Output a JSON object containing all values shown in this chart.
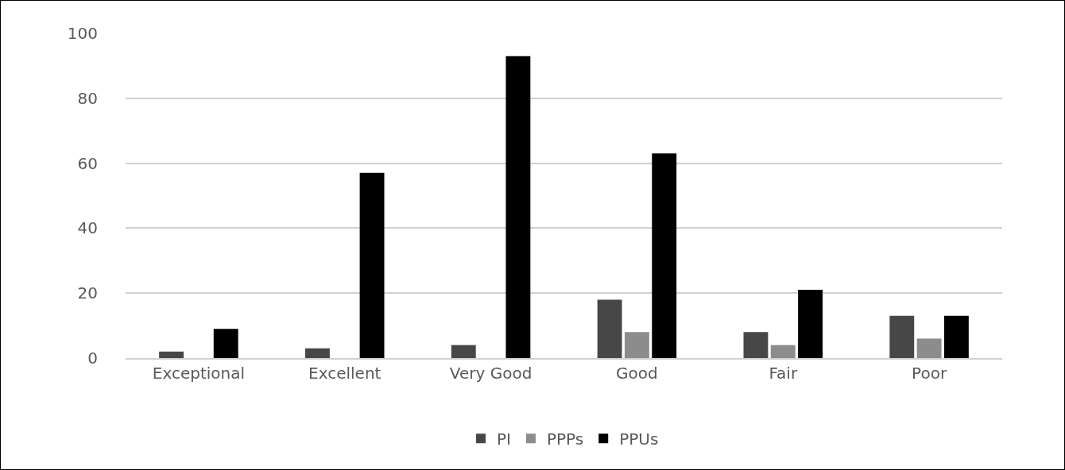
{
  "chart_data": {
    "type": "bar",
    "categories": [
      "Exceptional",
      "Excellent",
      "Very Good",
      "Good",
      "Fair",
      "Poor"
    ],
    "series": [
      {
        "name": "PI",
        "color": "#474747",
        "values": [
          2,
          3,
          4,
          18,
          8,
          13
        ]
      },
      {
        "name": "PPPs",
        "color": "#8c8c8c",
        "values": [
          0,
          0,
          0,
          8,
          4,
          6
        ]
      },
      {
        "name": "PPUs",
        "color": "#000000",
        "values": [
          9,
          57,
          93,
          63,
          21,
          13
        ]
      }
    ],
    "ylim": [
      0,
      100
    ],
    "yticks": [
      0,
      20,
      40,
      60,
      80,
      100
    ],
    "grid": "y",
    "legend": "bottom"
  }
}
